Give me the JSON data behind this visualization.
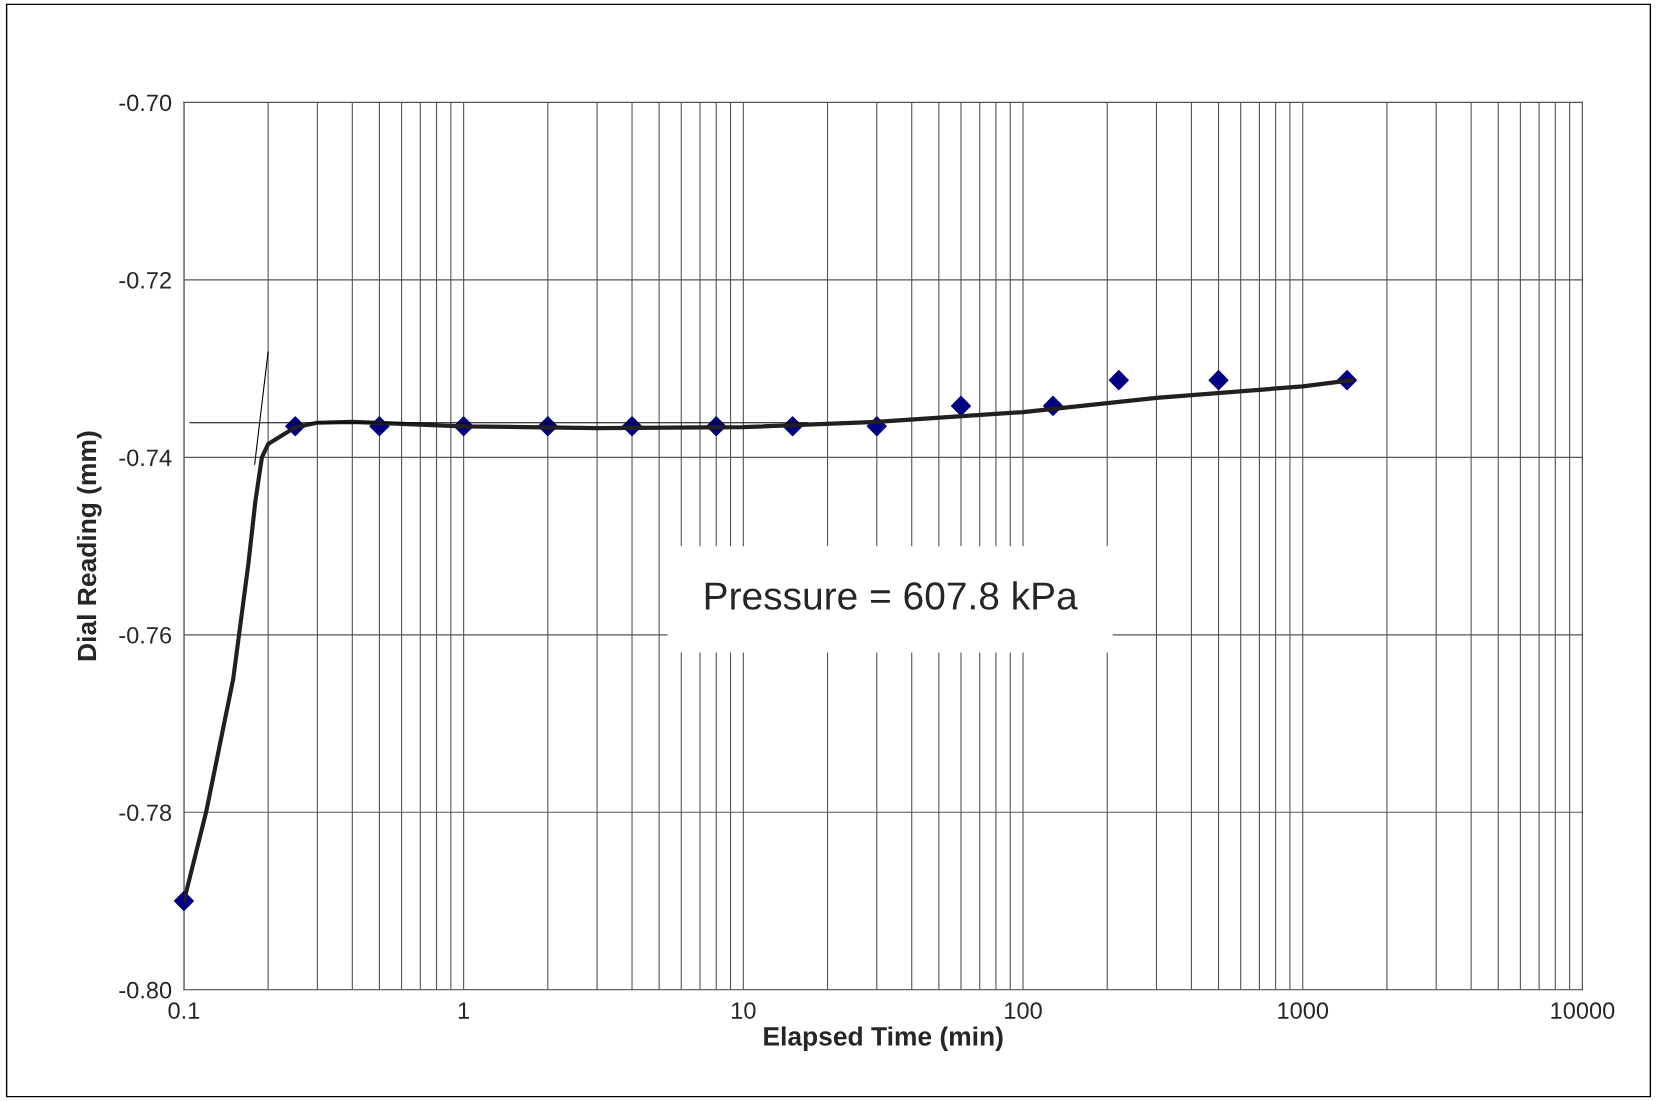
{
  "chart_data": {
    "type": "scatter",
    "xlabel": "Elapsed Time (min)",
    "ylabel": "Dial Reading (mm)",
    "log": "x",
    "xlim": [
      0.1,
      10000
    ],
    "xticks": [
      0.1,
      1,
      10,
      100,
      1000,
      10000
    ],
    "ylim": [
      -0.8,
      -0.7
    ],
    "yticks": [
      {
        "value": -0.8,
        "label": "-0.80"
      },
      {
        "value": -0.78,
        "label": "-0.78"
      },
      {
        "value": -0.76,
        "label": "-0.76"
      },
      {
        "value": -0.74,
        "label": "-0.74"
      },
      {
        "value": -0.72,
        "label": "-0.72"
      },
      {
        "value": -0.7,
        "label": "-0.70"
      }
    ],
    "grid": true,
    "legend": false,
    "annotations": [
      "Pressure = 607.8 kPa"
    ],
    "series": [
      {
        "marker": "diamond",
        "color": "#000080",
        "x": [
          0.1,
          0.25,
          0.5,
          1,
          2,
          4,
          8,
          15,
          30,
          60,
          128,
          220,
          500,
          1440
        ],
        "values": [
          -0.79,
          -0.7365,
          -0.7365,
          -0.7365,
          -0.7365,
          -0.7365,
          -0.7365,
          -0.7365,
          -0.7365,
          -0.7342,
          -0.7342,
          -0.7313,
          -0.7313,
          -0.7313
        ]
      },
      {
        "type": "line",
        "marker": "none",
        "line_style": "solid",
        "color": "#231f20",
        "x": [
          0.1,
          0.12,
          0.15,
          0.17,
          0.18,
          0.19,
          0.2,
          0.25,
          0.3,
          0.4,
          1,
          3,
          10,
          30,
          100,
          300,
          1000,
          1500
        ],
        "values": [
          -0.79,
          -0.78,
          -0.765,
          -0.752,
          -0.745,
          -0.74,
          -0.7385,
          -0.7366,
          -0.7361,
          -0.736,
          -0.7365,
          -0.7367,
          -0.7366,
          -0.736,
          -0.7349,
          -0.7333,
          -0.732,
          -0.7313
        ]
      },
      {
        "type": "line",
        "marker": "none",
        "line_style": "solid",
        "color": "#000000",
        "x": [
          0.105,
          17
        ],
        "values": [
          -0.7361,
          -0.7361
        ]
      },
      {
        "type": "line",
        "marker": "none",
        "line_style": "solid",
        "color": "#000000",
        "x": [
          0.179,
          0.2
        ],
        "values": [
          -0.7408,
          -0.7281
        ]
      }
    ]
  }
}
